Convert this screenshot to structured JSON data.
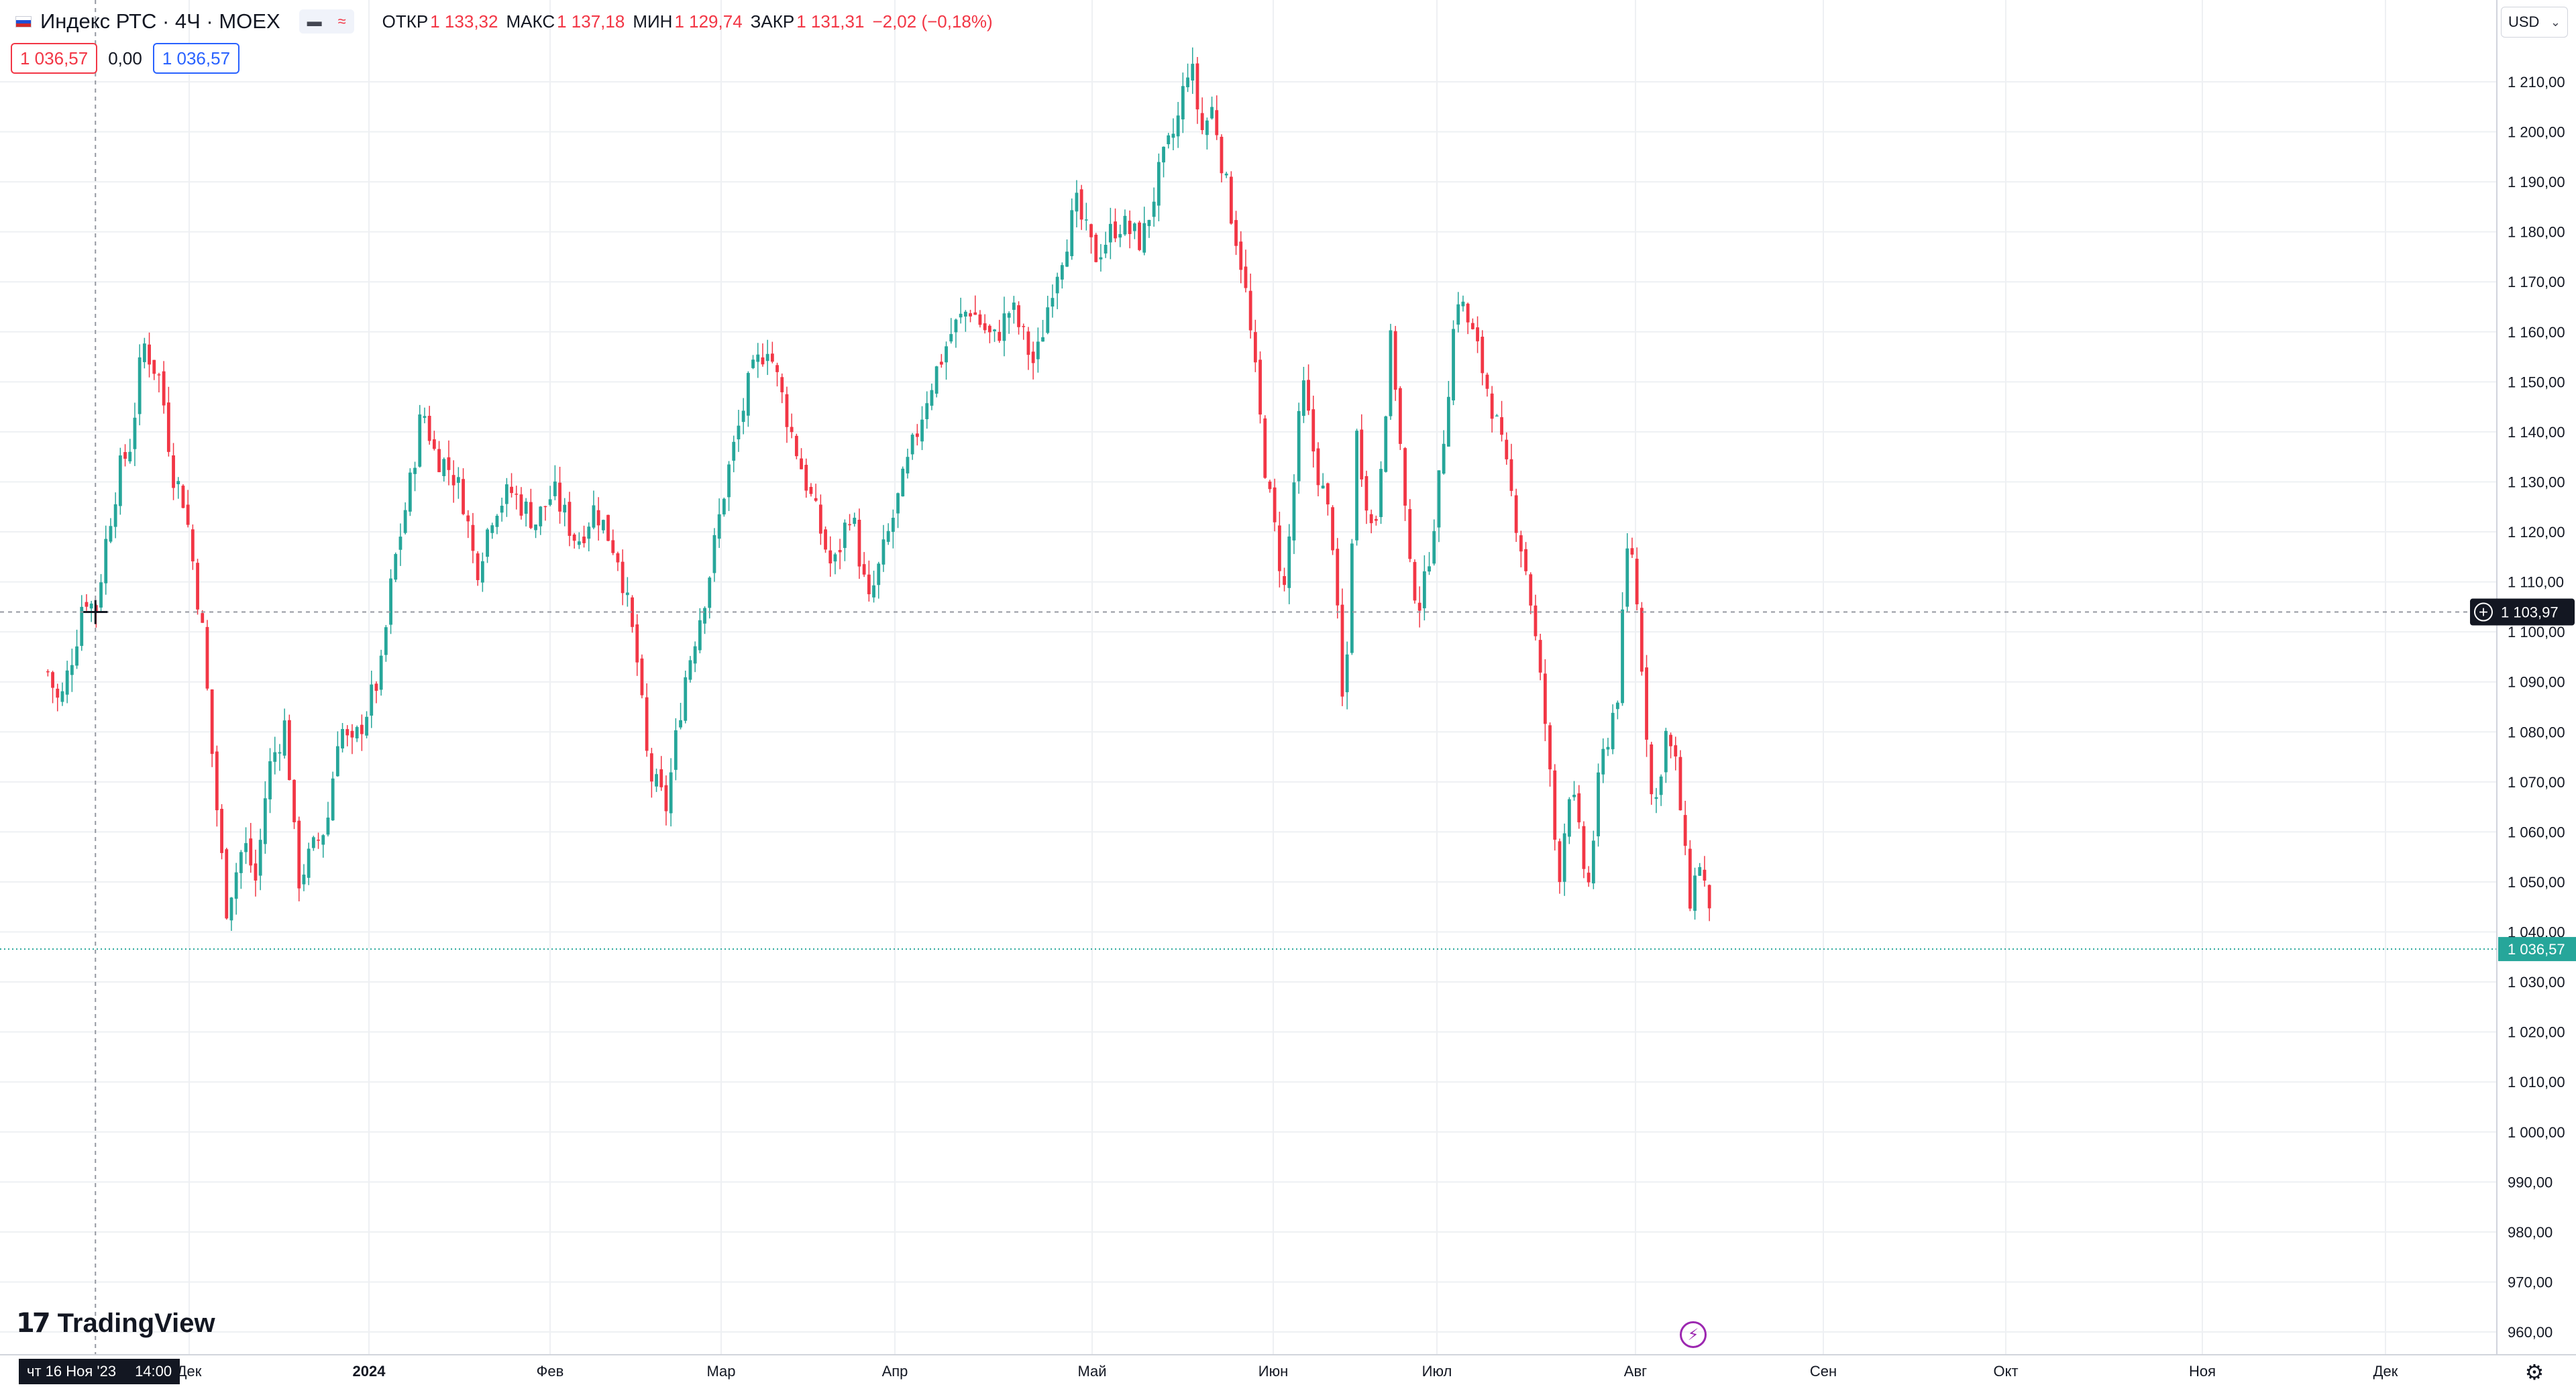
{
  "header": {
    "symbol_title": "Индекс РТС · 4Ч · MOEX",
    "ohlc": [
      {
        "label": "ОТКР",
        "value": "1 133,32"
      },
      {
        "label": "МАКС",
        "value": "1 137,18"
      },
      {
        "label": "МИН",
        "value": "1 129,74"
      },
      {
        "label": "ЗАКР",
        "value": "1 131,31"
      }
    ],
    "change": "−2,02 (−0,18%)",
    "sell_price": "1 036,57",
    "spread": "0,00",
    "buy_price": "1 036,57"
  },
  "currency": "USD",
  "crosshair": {
    "price_label": "1 103,97",
    "time_day": "чт 16 Ноя '23",
    "time_hour": "14:00"
  },
  "last_price_label": "1 036,57",
  "brand": "TradingView",
  "colors": {
    "up": "#26a69a",
    "down": "#f23645",
    "grid": "#eef0f3",
    "axis_text": "#131722",
    "last_price_bg": "#26a69a",
    "crosshair_bg": "#131722"
  },
  "chart_data": {
    "type": "candlestick",
    "title": "Индекс РТС · 4Ч · MOEX",
    "ylim": [
      955,
      1225
    ],
    "y_ticks": [
      1210,
      1200,
      1190,
      1180,
      1170,
      1160,
      1150,
      1140,
      1130,
      1120,
      1110,
      1100,
      1090,
      1080,
      1070,
      1060,
      1050,
      1040,
      1030,
      1020,
      1010,
      1000,
      990,
      980,
      970,
      960
    ],
    "y_tick_labels": [
      "1 210,00",
      "1 200,00",
      "1 190,00",
      "1 180,00",
      "1 170,00",
      "1 160,00",
      "1 150,00",
      "1 140,00",
      "1 130,00",
      "1 120,00",
      "1 110,00",
      "1 100,00",
      "1 090,00",
      "1 080,00",
      "1 070,00",
      "1 060,00",
      "1 050,00",
      "1 040,00",
      "1 030,00",
      "1 020,00",
      "1 010,00",
      "1 000,00",
      "990,00",
      "980,00",
      "970,00",
      "960,00"
    ],
    "x_ticks": [
      "Дек",
      "2024",
      "Фев",
      "Мар",
      "Апр",
      "Май",
      "Июн",
      "Июл",
      "Авг",
      "Сен",
      "Окт",
      "Ноя",
      "Дек"
    ],
    "close_path": [
      [
        "2023-11-08",
        1092
      ],
      [
        "2023-11-10",
        1085
      ],
      [
        "2023-11-13",
        1100
      ],
      [
        "2023-11-14",
        1108
      ],
      [
        "2023-11-16",
        1104
      ],
      [
        "2023-11-18",
        1120
      ],
      [
        "2023-11-20",
        1132
      ],
      [
        "2023-11-22",
        1138
      ],
      [
        "2023-11-24",
        1158
      ],
      [
        "2023-11-27",
        1150
      ],
      [
        "2023-11-29",
        1132
      ],
      [
        "2023-12-01",
        1126
      ],
      [
        "2023-12-04",
        1100
      ],
      [
        "2023-12-06",
        1070
      ],
      [
        "2023-12-08",
        1045
      ],
      [
        "2023-12-11",
        1058
      ],
      [
        "2023-12-13",
        1050
      ],
      [
        "2023-12-15",
        1072
      ],
      [
        "2023-12-18",
        1082
      ],
      [
        "2023-12-20",
        1050
      ],
      [
        "2023-12-22",
        1055
      ],
      [
        "2023-12-25",
        1062
      ],
      [
        "2023-12-27",
        1082
      ],
      [
        "2023-12-29",
        1076
      ],
      [
        "2024-01-03",
        1092
      ],
      [
        "2024-01-05",
        1112
      ],
      [
        "2024-01-08",
        1130
      ],
      [
        "2024-01-10",
        1145
      ],
      [
        "2024-01-12",
        1136
      ],
      [
        "2024-01-15",
        1132
      ],
      [
        "2024-01-17",
        1126
      ],
      [
        "2024-01-19",
        1112
      ],
      [
        "2024-01-22",
        1125
      ],
      [
        "2024-01-25",
        1128
      ],
      [
        "2024-01-29",
        1122
      ],
      [
        "2024-02-01",
        1128
      ],
      [
        "2024-02-05",
        1118
      ],
      [
        "2024-02-08",
        1125
      ],
      [
        "2024-02-12",
        1115
      ],
      [
        "2024-02-15",
        1095
      ],
      [
        "2024-02-17",
        1072
      ],
      [
        "2024-02-20",
        1065
      ],
      [
        "2024-02-23",
        1090
      ],
      [
        "2024-02-27",
        1110
      ],
      [
        "2024-03-01",
        1130
      ],
      [
        "2024-03-05",
        1150
      ],
      [
        "2024-03-08",
        1158
      ],
      [
        "2024-03-12",
        1140
      ],
      [
        "2024-03-15",
        1128
      ],
      [
        "2024-03-19",
        1112
      ],
      [
        "2024-03-22",
        1125
      ],
      [
        "2024-03-25",
        1105
      ],
      [
        "2024-03-28",
        1118
      ],
      [
        "2024-04-01",
        1135
      ],
      [
        "2024-04-04",
        1148
      ],
      [
        "2024-04-08",
        1160
      ],
      [
        "2024-04-11",
        1165
      ],
      [
        "2024-04-15",
        1158
      ],
      [
        "2024-04-18",
        1165
      ],
      [
        "2024-04-22",
        1153
      ],
      [
        "2024-04-25",
        1170
      ],
      [
        "2024-04-29",
        1185
      ],
      [
        "2024-05-02",
        1175
      ],
      [
        "2024-05-06",
        1182
      ],
      [
        "2024-05-10",
        1178
      ],
      [
        "2024-05-13",
        1192
      ],
      [
        "2024-05-16",
        1202
      ],
      [
        "2024-05-18",
        1215
      ],
      [
        "2024-05-20",
        1200
      ],
      [
        "2024-05-22",
        1205
      ],
      [
        "2024-05-24",
        1190
      ],
      [
        "2024-05-27",
        1172
      ],
      [
        "2024-05-29",
        1152
      ],
      [
        "2024-05-31",
        1130
      ],
      [
        "2024-06-03",
        1108
      ],
      [
        "2024-06-06",
        1150
      ],
      [
        "2024-06-08",
        1135
      ],
      [
        "2024-06-11",
        1120
      ],
      [
        "2024-06-13",
        1080
      ],
      [
        "2024-06-15",
        1140
      ],
      [
        "2024-06-18",
        1118
      ],
      [
        "2024-06-21",
        1160
      ],
      [
        "2024-06-24",
        1112
      ],
      [
        "2024-06-26",
        1105
      ],
      [
        "2024-06-29",
        1130
      ],
      [
        "2024-07-02",
        1168
      ],
      [
        "2024-07-05",
        1158
      ],
      [
        "2024-07-08",
        1145
      ],
      [
        "2024-07-11",
        1128
      ],
      [
        "2024-07-14",
        1110
      ],
      [
        "2024-07-17",
        1080
      ],
      [
        "2024-07-19",
        1050
      ],
      [
        "2024-07-21",
        1070
      ],
      [
        "2024-07-24",
        1048
      ],
      [
        "2024-07-26",
        1072
      ],
      [
        "2024-07-29",
        1088
      ],
      [
        "2024-07-31",
        1122
      ],
      [
        "2024-08-02",
        1095
      ],
      [
        "2024-08-04",
        1062
      ],
      [
        "2024-08-06",
        1080
      ],
      [
        "2024-08-08",
        1072
      ],
      [
        "2024-08-10",
        1046
      ],
      [
        "2024-08-12",
        1055
      ],
      [
        "2024-08-14",
        1037
      ]
    ]
  }
}
